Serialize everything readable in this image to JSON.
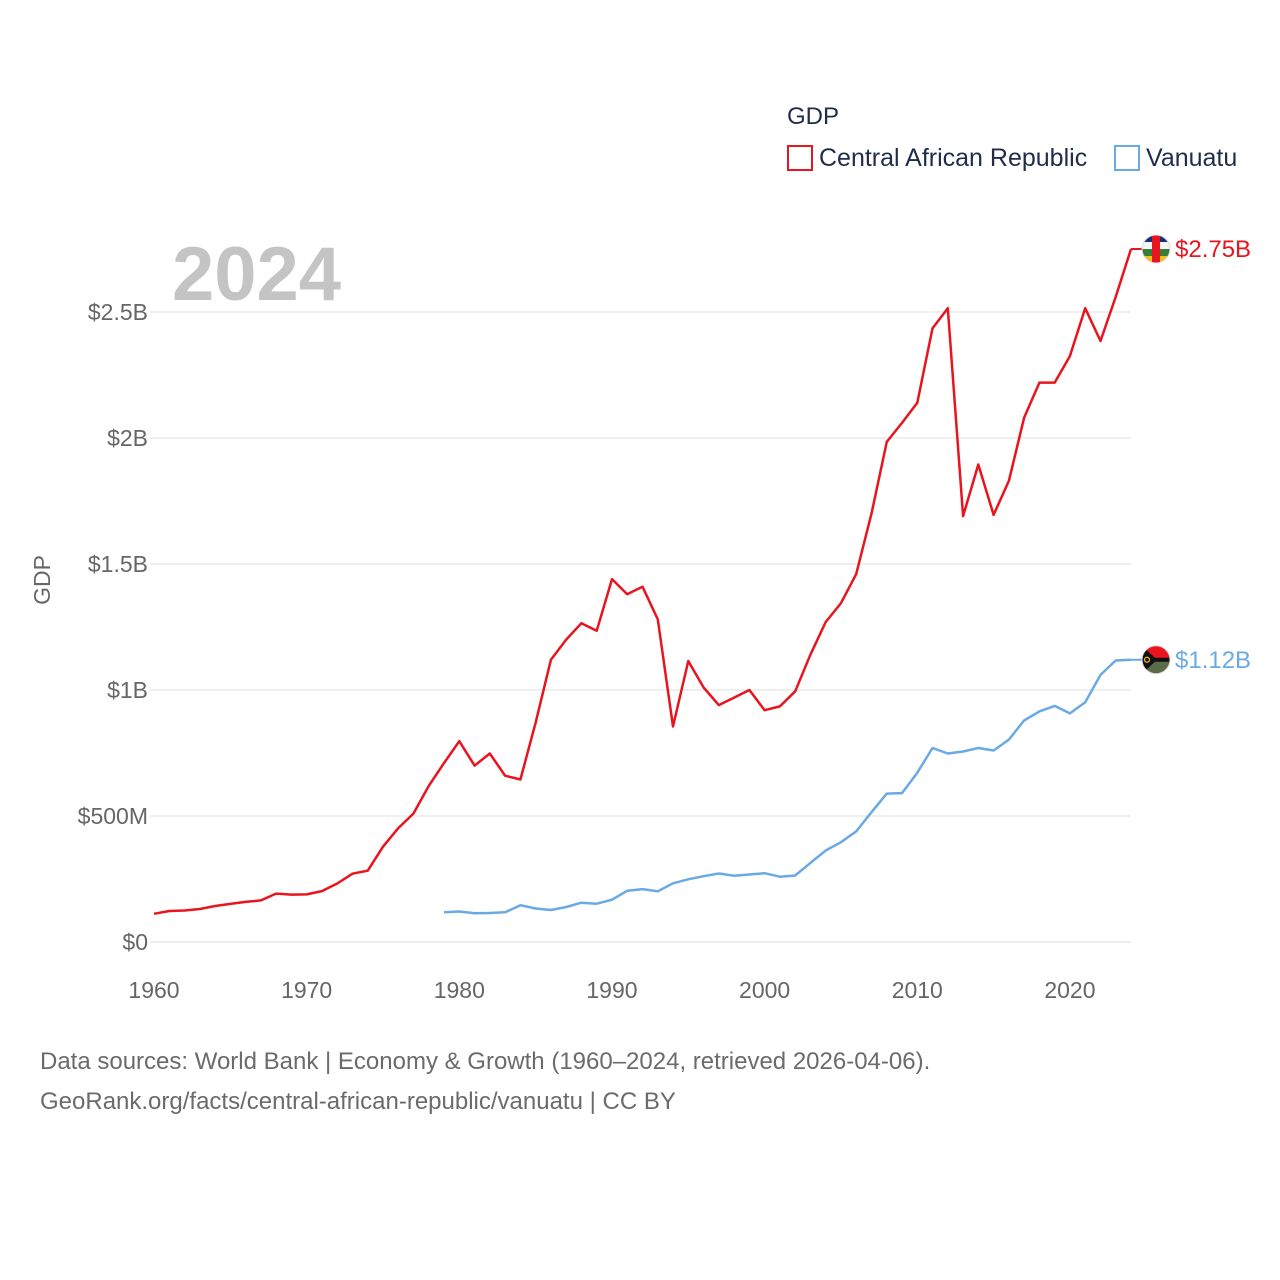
{
  "chart_data": {
    "type": "line",
    "year_label": "2024",
    "ylabel": "GDP",
    "xlabel": "",
    "xlim": [
      1960,
      2024
    ],
    "ylim": [
      0,
      2800000000
    ],
    "x_ticks": [
      1960,
      1970,
      1980,
      1990,
      2000,
      2010,
      2020
    ],
    "x_tick_labels": [
      "1960",
      "1970",
      "1980",
      "1990",
      "2000",
      "2010",
      "2020"
    ],
    "y_ticks": [
      0,
      500000000,
      1000000000,
      1500000000,
      2000000000,
      2500000000
    ],
    "y_tick_labels": [
      "$0",
      "$500M",
      "$1B",
      "$1.5B",
      "$2B",
      "$2.5B"
    ],
    "legend": {
      "title": "GDP",
      "position": "top-right"
    },
    "series": [
      {
        "name": "Central African Republic",
        "color": "#e8141e",
        "end_label": "$2.75B",
        "flag_icon": "central-african-republic-flag-icon",
        "x": [
          1960,
          1961,
          1962,
          1963,
          1964,
          1965,
          1966,
          1967,
          1968,
          1969,
          1970,
          1971,
          1972,
          1973,
          1974,
          1975,
          1976,
          1977,
          1978,
          1979,
          1980,
          1981,
          1982,
          1983,
          1984,
          1985,
          1986,
          1987,
          1988,
          1989,
          1990,
          1991,
          1992,
          1993,
          1994,
          1995,
          1996,
          1997,
          1998,
          1999,
          2000,
          2001,
          2002,
          2003,
          2004,
          2005,
          2006,
          2007,
          2008,
          2009,
          2010,
          2011,
          2012,
          2013,
          2014,
          2015,
          2016,
          2017,
          2018,
          2019,
          2020,
          2021,
          2022,
          2023,
          2024
        ],
        "values": [
          112000000,
          123000000,
          125000000,
          131000000,
          143000000,
          151000000,
          159000000,
          165000000,
          192000000,
          188000000,
          189000000,
          202000000,
          232000000,
          271000000,
          283000000,
          378000000,
          452000000,
          510000000,
          620000000,
          710000000,
          797000000,
          700000000,
          748000000,
          660000000,
          645000000,
          870000000,
          1120000000,
          1200000000,
          1265000000,
          1235000000,
          1440000000,
          1380000000,
          1410000000,
          1280000000,
          855000000,
          1115000000,
          1010000000,
          940000000,
          970000000,
          1000000000,
          920000000,
          935000000,
          995000000,
          1140000000,
          1270000000,
          1345000000,
          1460000000,
          1700000000,
          1985000000,
          2060000000,
          2140000000,
          2435000000,
          2515000000,
          1690000000,
          1895000000,
          1695000000,
          1830000000,
          2080000000,
          2220000000,
          2220000000,
          2325000000,
          2515000000,
          2385000000,
          2560000000,
          2750000000
        ]
      },
      {
        "name": "Vanuatu",
        "color": "#6aaae4",
        "end_label": "$1.12B",
        "flag_icon": "vanuatu-flag-icon",
        "x": [
          1979,
          1980,
          1981,
          1982,
          1983,
          1984,
          1985,
          1986,
          1987,
          1988,
          1989,
          1990,
          1991,
          1992,
          1993,
          1994,
          1995,
          1996,
          1997,
          1998,
          1999,
          2000,
          2001,
          2002,
          2003,
          2004,
          2005,
          2006,
          2007,
          2008,
          2009,
          2010,
          2011,
          2012,
          2013,
          2014,
          2015,
          2016,
          2017,
          2018,
          2019,
          2020,
          2021,
          2022,
          2023,
          2024
        ],
        "values": [
          118000000,
          121000000,
          114000000,
          115000000,
          118000000,
          146000000,
          133000000,
          127000000,
          139000000,
          156000000,
          152000000,
          168000000,
          203000000,
          210000000,
          201000000,
          233000000,
          249000000,
          261000000,
          272000000,
          263000000,
          268000000,
          273000000,
          259000000,
          264000000,
          314000000,
          363000000,
          396000000,
          439000000,
          515000000,
          589000000,
          591000000,
          672000000,
          770000000,
          748000000,
          756000000,
          770000000,
          760000000,
          803000000,
          879000000,
          915000000,
          937000000,
          907000000,
          951000000,
          1060000000,
          1117000000,
          1120000000
        ]
      }
    ]
  },
  "sources": {
    "line1": "Data sources: World Bank | Economy & Growth (1960–2024, retrieved 2026-04-06).",
    "line2": "GeoRank.org/facts/central-african-republic/vanuatu | CC BY"
  }
}
